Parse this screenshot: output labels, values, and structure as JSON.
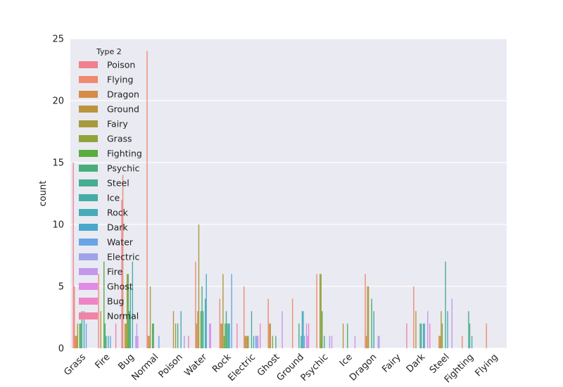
{
  "chart_data": {
    "type": "bar",
    "title": "",
    "xlabel": "",
    "ylabel": "count",
    "ylim": [
      0,
      25
    ],
    "yticks": [
      0,
      5,
      10,
      15,
      20,
      25
    ],
    "grid": true,
    "legend_title": "Type 2",
    "legend_position": "top-left",
    "categories": [
      "Grass",
      "Fire",
      "Bug",
      "Normal",
      "Poison",
      "Water",
      "Rock",
      "Electric",
      "Ghost",
      "Ground",
      "Psychic",
      "Ice",
      "Dragon",
      "Fairy",
      "Dark",
      "Steel",
      "Fighting",
      "Flying"
    ],
    "series": [
      {
        "name": "Poison",
        "color": "#f0828f",
        "values": [
          15,
          0,
          12,
          0,
          0,
          0,
          0,
          0,
          0,
          0,
          0,
          0,
          0,
          0,
          0,
          0,
          0,
          0
        ]
      },
      {
        "name": "Flying",
        "color": "#ef8a6e",
        "values": [
          5,
          6,
          14,
          24,
          0,
          7,
          4,
          5,
          4,
          4,
          6,
          0,
          6,
          0,
          5,
          0,
          1,
          2
        ]
      },
      {
        "name": "Dragon",
        "color": "#d68c47",
        "values": [
          1,
          0,
          0,
          1,
          0,
          2,
          2,
          1,
          2,
          0,
          0,
          0,
          1,
          0,
          0,
          1,
          0,
          0
        ]
      },
      {
        "name": "Ground",
        "color": "#bc9440",
        "values": [
          1,
          3,
          2,
          1,
          3,
          3,
          2,
          1,
          2,
          0,
          0,
          2,
          5,
          0,
          3,
          1,
          0,
          0
        ]
      },
      {
        "name": "Fairy",
        "color": "#a89a3c",
        "values": [
          2,
          0,
          2,
          5,
          0,
          10,
          6,
          1,
          0,
          0,
          6,
          0,
          5,
          0,
          0,
          3,
          0,
          0
        ]
      },
      {
        "name": "Grass",
        "color": "#8ea33c",
        "values": [
          0,
          0,
          6,
          0,
          2,
          0,
          1,
          1,
          1,
          0,
          6,
          0,
          0,
          0,
          0,
          2,
          0,
          0
        ]
      },
      {
        "name": "Fighting",
        "color": "#59ad3e",
        "values": [
          2,
          7,
          6,
          2,
          0,
          3,
          2,
          0,
          0,
          0,
          3,
          0,
          0,
          0,
          0,
          0,
          0,
          0
        ]
      },
      {
        "name": "Psychic",
        "color": "#48ad79",
        "values": [
          2,
          2,
          3,
          2,
          2,
          5,
          3,
          0,
          0,
          2,
          0,
          2,
          4,
          0,
          2,
          0,
          3,
          0
        ]
      },
      {
        "name": "Steel",
        "color": "#45ad94",
        "values": [
          3,
          1,
          5,
          0,
          0,
          3,
          2,
          3,
          1,
          0,
          1,
          0,
          0,
          0,
          2,
          7,
          2,
          0
        ]
      },
      {
        "name": "Ice",
        "color": "#45aca6",
        "values": [
          0,
          0,
          0,
          0,
          0,
          0,
          2,
          0,
          0,
          1,
          0,
          0,
          3,
          0,
          0,
          0,
          0,
          0
        ]
      },
      {
        "name": "Rock",
        "color": "#47abb8",
        "values": [
          3,
          1,
          7,
          0,
          3,
          4,
          2,
          1,
          0,
          3,
          0,
          0,
          0,
          0,
          2,
          3,
          1,
          0
        ]
      },
      {
        "name": "Dark",
        "color": "#4ba8cb",
        "values": [
          0,
          0,
          0,
          0,
          0,
          6,
          0,
          0,
          0,
          3,
          0,
          0,
          0,
          0,
          2,
          0,
          0,
          0
        ]
      },
      {
        "name": "Water",
        "color": "#69a4e4",
        "values": [
          2,
          1,
          0,
          1,
          0,
          0,
          6,
          1,
          0,
          1,
          0,
          0,
          0,
          0,
          0,
          0,
          0,
          0
        ]
      },
      {
        "name": "Electric",
        "color": "#a0a3ea",
        "values": [
          0,
          0,
          1,
          0,
          1,
          0,
          0,
          1,
          0,
          0,
          1,
          0,
          1,
          0,
          0,
          0,
          0,
          0
        ]
      },
      {
        "name": "Fire",
        "color": "#c398ec",
        "values": [
          0,
          0,
          2,
          0,
          0,
          2,
          0,
          1,
          3,
          2,
          0,
          1,
          1,
          0,
          3,
          4,
          0,
          0
        ]
      },
      {
        "name": "Ghost",
        "color": "#e18ae6",
        "values": [
          0,
          0,
          1,
          0,
          0,
          2,
          0,
          0,
          0,
          1,
          1,
          0,
          0,
          0,
          0,
          0,
          0,
          0
        ]
      },
      {
        "name": "Bug",
        "color": "#ee84c5",
        "values": [
          0,
          0,
          0,
          0,
          0,
          0,
          0,
          2,
          0,
          2,
          0,
          0,
          0,
          0,
          2,
          0,
          0,
          0
        ]
      },
      {
        "name": "Normal",
        "color": "#f282a6",
        "values": [
          0,
          2,
          0,
          0,
          1,
          0,
          2,
          0,
          0,
          0,
          0,
          0,
          0,
          2,
          0,
          0,
          0,
          0
        ]
      }
    ]
  }
}
